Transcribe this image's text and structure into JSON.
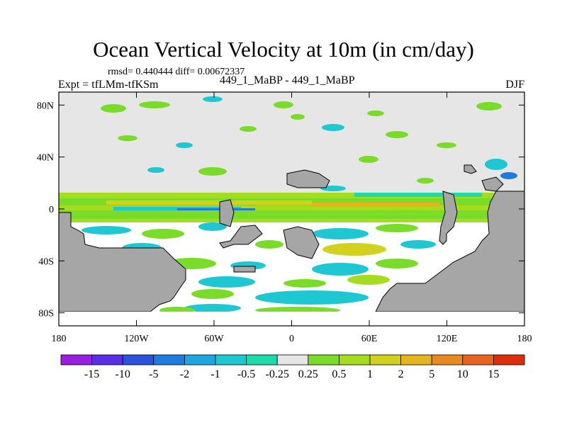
{
  "title": "Ocean Vertical Velocity at 10m (in cm/day)",
  "stats": "rmsd= 0.440444 diff= 0.00672337",
  "subtitle_left": "Expt = tfLMm-tfKSm",
  "subtitle_center": "449_1_MaBP - 449_1_MaBP",
  "subtitle_right": "DJF",
  "chart_data": {
    "type": "heatmap",
    "title": "Ocean Vertical Velocity at 10m (in cm/day)",
    "xlabel": "",
    "ylabel": "",
    "xlim": [
      -180,
      180
    ],
    "ylim": [
      -90,
      90
    ],
    "x_ticks": [
      {
        "value": -180,
        "label": "180"
      },
      {
        "value": -120,
        "label": "120W"
      },
      {
        "value": -60,
        "label": "60W"
      },
      {
        "value": 0,
        "label": "0"
      },
      {
        "value": 60,
        "label": "60E"
      },
      {
        "value": 120,
        "label": "120E"
      },
      {
        "value": 180,
        "label": "180"
      }
    ],
    "y_ticks": [
      {
        "value": 80,
        "label": "80N"
      },
      {
        "value": 40,
        "label": "40N"
      },
      {
        "value": 0,
        "label": "0"
      },
      {
        "value": -40,
        "label": "40S"
      },
      {
        "value": -80,
        "label": "80S"
      }
    ],
    "colorbar": {
      "labels": [
        "-15",
        "-10",
        "-5",
        "-2",
        "-1",
        "-0.5",
        "-0.25",
        "0.25",
        "0.5",
        "1",
        "2",
        "5",
        "10",
        "15"
      ],
      "colors": [
        "#9a1ee0",
        "#5a2ee6",
        "#2a52dc",
        "#1e7be0",
        "#1ea6e0",
        "#1ec8d2",
        "#1edcaa",
        "#e6e6e6",
        "#78dc28",
        "#a6dc1e",
        "#d2d21e",
        "#e6b41e",
        "#e68a1e",
        "#e6641e",
        "#dc2e0a"
      ]
    },
    "colors": {
      "land": "#a6a6a6",
      "sea_ice_blank": "#e6e6e6",
      "ocean_neutral": "#ffffff"
    },
    "regions": [
      {
        "label": "arctic-blank",
        "lon": [
          -180,
          180
        ],
        "lat": [
          8,
          90
        ],
        "class": "-0.25 to 0.25"
      },
      {
        "label": "equatorial-band",
        "lon": [
          -180,
          180
        ],
        "lat": [
          -8,
          8
        ],
        "class": "0.5 to 2"
      }
    ]
  }
}
